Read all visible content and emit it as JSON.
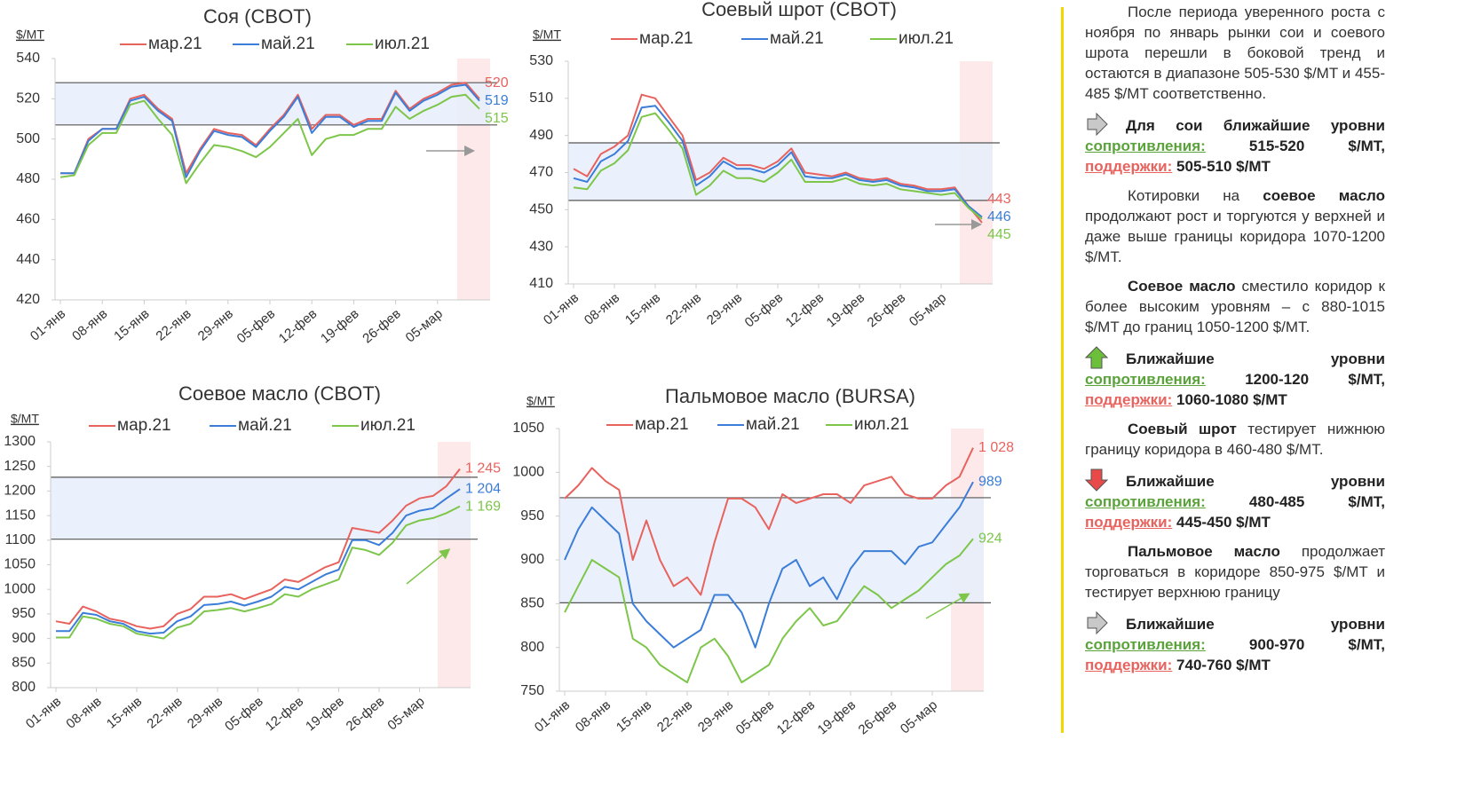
{
  "chart_data": [
    {
      "type": "line",
      "title": "Соя (CBOT)",
      "y_label": "$/MT",
      "ylim": [
        420,
        540
      ],
      "yticks": [
        420,
        440,
        460,
        480,
        500,
        520,
        540
      ],
      "corridor": [
        507,
        528
      ],
      "categories": [
        "01-янв",
        null,
        null,
        "08-янв",
        null,
        null,
        "15-янв",
        null,
        null,
        "22-янв",
        null,
        null,
        "29-янв",
        null,
        null,
        "05-фев",
        null,
        null,
        "12-фев",
        null,
        null,
        "19-фев",
        null,
        null,
        "26-фев",
        null,
        null,
        "05-мар",
        null,
        null,
        null
      ],
      "series": [
        {
          "name": "мар.21",
          "color": "#e8625e",
          "values": [
            483,
            483,
            500,
            505,
            505,
            520,
            522,
            515,
            510,
            483,
            495,
            505,
            503,
            502,
            497,
            505,
            512,
            522,
            505,
            512,
            512,
            507,
            510,
            510,
            524,
            515,
            520,
            523,
            527,
            528,
            520
          ]
        },
        {
          "name": "май.21",
          "color": "#3b7dd8",
          "values": [
            483,
            483,
            499,
            505,
            505,
            519,
            521,
            514,
            509,
            481,
            494,
            504,
            502,
            501,
            496,
            504,
            511,
            521,
            503,
            511,
            511,
            506,
            509,
            509,
            523,
            514,
            519,
            522,
            526,
            527,
            519
          ]
        },
        {
          "name": "июл.21",
          "color": "#7dc64a",
          "values": [
            481,
            482,
            497,
            503,
            503,
            517,
            519,
            510,
            502,
            478,
            488,
            497,
            496,
            494,
            491,
            496,
            503,
            510,
            492,
            500,
            502,
            502,
            505,
            505,
            516,
            510,
            514,
            517,
            521,
            522,
            515
          ]
        }
      ]
    },
    {
      "type": "line",
      "title": "Соевый шрот (CBOT)",
      "y_label": "$/MT",
      "ylim": [
        410,
        530
      ],
      "yticks": [
        410,
        430,
        450,
        470,
        490,
        510,
        530
      ],
      "corridor": [
        455,
        486
      ],
      "categories": [
        "01-янв",
        null,
        null,
        "08-янв",
        null,
        null,
        "15-янв",
        null,
        null,
        "22-янв",
        null,
        null,
        "29-янв",
        null,
        null,
        "05-фев",
        null,
        null,
        "12-фев",
        null,
        null,
        "19-фев",
        null,
        null,
        "26-фев",
        null,
        null,
        "05-мар",
        null,
        null,
        null
      ],
      "series": [
        {
          "name": "мар.21",
          "color": "#e8625e",
          "values": [
            472,
            468,
            480,
            484,
            490,
            512,
            510,
            500,
            490,
            466,
            470,
            478,
            474,
            474,
            472,
            476,
            483,
            470,
            469,
            468,
            470,
            467,
            466,
            467,
            464,
            463,
            461,
            461,
            462,
            452,
            443
          ]
        },
        {
          "name": "май.21",
          "color": "#3b7dd8",
          "values": [
            467,
            465,
            476,
            480,
            487,
            505,
            506,
            497,
            487,
            463,
            468,
            476,
            472,
            472,
            470,
            474,
            481,
            468,
            467,
            467,
            469,
            466,
            465,
            466,
            463,
            462,
            460,
            460,
            461,
            452,
            446
          ]
        },
        {
          "name": "июл.21",
          "color": "#7dc64a",
          "values": [
            462,
            461,
            471,
            475,
            482,
            500,
            502,
            493,
            483,
            458,
            463,
            471,
            467,
            467,
            465,
            470,
            477,
            465,
            465,
            465,
            467,
            464,
            463,
            464,
            461,
            460,
            459,
            458,
            459,
            451,
            445
          ]
        }
      ]
    },
    {
      "type": "line",
      "title": "Соевое масло (CBOT)",
      "y_label": "$/MT",
      "ylim": [
        800,
        1300
      ],
      "yticks": [
        800,
        850,
        900,
        950,
        1000,
        1050,
        1100,
        1150,
        1200,
        1250,
        1300
      ],
      "corridor": [
        1102,
        1228
      ],
      "categories": [
        "01-янв",
        null,
        null,
        "08-янв",
        null,
        null,
        "15-янв",
        null,
        null,
        "22-янв",
        null,
        null,
        "29-янв",
        null,
        null,
        "05-фев",
        null,
        null,
        "12-фев",
        null,
        null,
        "19-фев",
        null,
        null,
        "26-фев",
        null,
        null,
        "05-мар",
        null,
        null,
        null
      ],
      "series": [
        {
          "name": "мар.21",
          "color": "#e8625e",
          "values": [
            935,
            930,
            965,
            955,
            940,
            935,
            925,
            920,
            925,
            950,
            960,
            985,
            985,
            990,
            980,
            990,
            1000,
            1020,
            1015,
            1030,
            1045,
            1055,
            1125,
            1120,
            1115,
            1140,
            1170,
            1185,
            1190,
            1210,
            1245
          ],
          "value_labels": [
            null,
            null,
            null,
            null,
            null,
            null,
            null,
            null,
            null,
            null,
            null,
            null,
            null,
            null,
            null,
            null,
            null,
            null,
            null,
            null,
            null,
            null,
            null,
            null,
            null,
            null,
            null,
            null,
            null,
            null,
            "1 245"
          ]
        },
        {
          "name": "май.21",
          "color": "#3b7dd8",
          "values": [
            915,
            915,
            952,
            948,
            935,
            930,
            915,
            910,
            912,
            935,
            945,
            968,
            970,
            975,
            967,
            975,
            985,
            1005,
            1000,
            1015,
            1030,
            1040,
            1100,
            1100,
            1090,
            1115,
            1150,
            1160,
            1165,
            1185,
            1204
          ],
          "value_labels": [
            null,
            null,
            null,
            null,
            null,
            null,
            null,
            null,
            null,
            null,
            null,
            null,
            null,
            null,
            null,
            null,
            null,
            null,
            null,
            null,
            null,
            null,
            null,
            null,
            null,
            null,
            null,
            null,
            null,
            null,
            "1 204"
          ]
        },
        {
          "name": "июл.21",
          "color": "#7dc64a",
          "values": [
            902,
            902,
            945,
            940,
            930,
            925,
            910,
            905,
            900,
            922,
            930,
            955,
            958,
            962,
            955,
            962,
            970,
            990,
            985,
            1000,
            1010,
            1020,
            1085,
            1080,
            1070,
            1095,
            1130,
            1140,
            1145,
            1155,
            1169
          ],
          "value_labels": [
            null,
            null,
            null,
            null,
            null,
            null,
            null,
            null,
            null,
            null,
            null,
            null,
            null,
            null,
            null,
            null,
            null,
            null,
            null,
            null,
            null,
            null,
            null,
            null,
            null,
            null,
            null,
            null,
            null,
            null,
            "1 169"
          ]
        }
      ]
    },
    {
      "type": "line",
      "title": "Пальмовое масло (BURSA)",
      "y_label": "$/MT",
      "ylim": [
        750,
        1050
      ],
      "yticks": [
        750,
        800,
        850,
        900,
        950,
        1000,
        1050
      ],
      "corridor": [
        851,
        971
      ],
      "categories": [
        "01-янв",
        null,
        null,
        "08-янв",
        null,
        null,
        "15-янв",
        null,
        null,
        "22-янв",
        null,
        null,
        "29-янв",
        null,
        null,
        "05-фев",
        null,
        null,
        "12-фев",
        null,
        null,
        "19-фев",
        null,
        null,
        "26-фев",
        null,
        null,
        "05-мар",
        null,
        null,
        null
      ],
      "series": [
        {
          "name": "мар.21",
          "color": "#e8625e",
          "values": [
            970,
            985,
            1005,
            990,
            980,
            900,
            945,
            900,
            870,
            880,
            860,
            920,
            970,
            970,
            960,
            935,
            975,
            965,
            970,
            975,
            975,
            965,
            985,
            990,
            995,
            975,
            970,
            970,
            985,
            995,
            1028
          ],
          "value_labels": [
            null,
            null,
            null,
            null,
            null,
            null,
            null,
            null,
            null,
            null,
            null,
            null,
            null,
            null,
            null,
            null,
            null,
            null,
            null,
            null,
            null,
            null,
            null,
            null,
            null,
            null,
            null,
            null,
            null,
            null,
            "1 028"
          ]
        },
        {
          "name": "май.21",
          "color": "#3b7dd8",
          "values": [
            900,
            935,
            960,
            945,
            930,
            850,
            830,
            815,
            800,
            810,
            820,
            860,
            860,
            840,
            800,
            850,
            890,
            900,
            870,
            880,
            855,
            890,
            910,
            910,
            910,
            895,
            915,
            920,
            940,
            960,
            989
          ]
        },
        {
          "name": "июл.21",
          "color": "#7dc64a",
          "values": [
            840,
            870,
            900,
            890,
            880,
            810,
            800,
            780,
            770,
            760,
            800,
            810,
            790,
            760,
            770,
            780,
            810,
            830,
            845,
            825,
            830,
            850,
            870,
            860,
            845,
            855,
            865,
            880,
            895,
            905,
            924
          ]
        }
      ]
    }
  ],
  "commentary": [
    {
      "text": "После периода уверенного роста с ноября по январь рынки сои и соевого шрота перешли в боковой тренд и остаются в диапазоне 505-530 $/MT и 455-485 $/MT соответственно."
    },
    {
      "icon": "right",
      "heading": "Для сои ближайшие уровни",
      "resistance_label": "сопротивления:",
      "resistance": "515-520 $/MT,",
      "support_label": "поддержки:",
      "support": "505-510 $/MT"
    },
    {
      "parts": [
        {
          "text": "Котировки на "
        },
        {
          "text": "соевое масло",
          "bold": true
        },
        {
          "text": " продолжают рост и торгуются у верхней и даже выше границы коридора 1070-1200 $/MT."
        }
      ]
    },
    {
      "parts": [
        {
          "text": "Соевое масло",
          "bold": true
        },
        {
          "text": " сместило коридор к более высоким уровням – с 880-1015 $/MT до границ 1050-1200 $/MT."
        }
      ]
    },
    {
      "icon": "up",
      "heading": "Ближайшие уровни",
      "resistance_label": "сопротивления:",
      "resistance": "1200-120 $/MT,",
      "support_label": "поддержки:",
      "support": "1060-1080 $/MT"
    },
    {
      "parts": [
        {
          "text": "Соевый шрот",
          "bold": true
        },
        {
          "text": " тестирует нижнюю границу коридора в 460-480 $/MT."
        }
      ]
    },
    {
      "icon": "down",
      "heading": "Ближайшие уровни",
      "resistance_label": "сопротивления:",
      "resistance": "480-485 $/MT,",
      "support_label": "поддержки:",
      "support": "445-450 $/MT"
    },
    {
      "parts": [
        {
          "text": "Пальмовое масло",
          "bold": true
        },
        {
          "text": " продолжает торговаться в коридоре 850-975 $/MT и тестирует верхнюю границу"
        }
      ]
    },
    {
      "icon": "right",
      "heading": "Ближайшие уровни",
      "resistance_label": "сопротивления:",
      "resistance": "900-970 $/MT,",
      "support_label": "поддержки:",
      "support": "740-760 $/MT"
    }
  ]
}
